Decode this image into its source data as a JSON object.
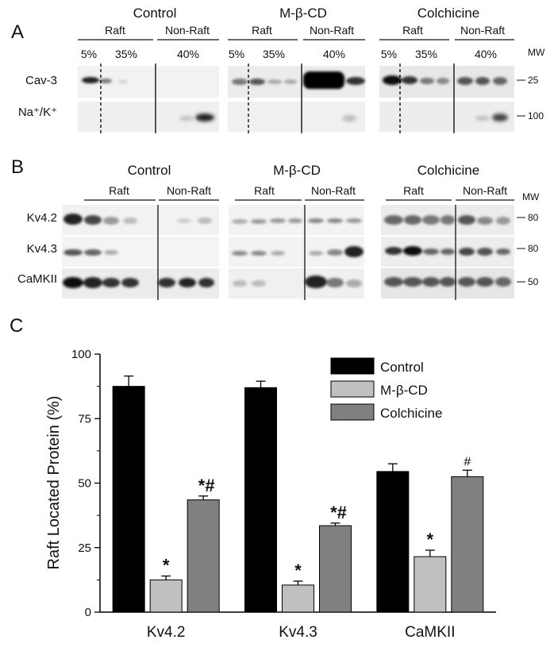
{
  "panel_labels": {
    "a": "A",
    "b": "B",
    "c": "C"
  },
  "panel_a": {
    "groups": [
      {
        "name": "Control",
        "raft": "Raft",
        "nonraft": "Non-Raft",
        "pct": [
          "5%",
          "35%",
          "40%"
        ]
      },
      {
        "name": "M-β-CD",
        "raft": "Raft",
        "nonraft": "Non-Raft",
        "pct": [
          "5%",
          "35%",
          "40%"
        ]
      },
      {
        "name": "Colchicine",
        "raft": "Raft",
        "nonraft": "Non-Raft",
        "pct": [
          "5%",
          "35%",
          "40%"
        ]
      }
    ],
    "rows": [
      {
        "label": "Cav-3",
        "mw": "25"
      },
      {
        "label": "Na⁺/K⁺",
        "mw": "100"
      }
    ],
    "mw_header": "MW"
  },
  "panel_b": {
    "groups": [
      {
        "name": "Control",
        "raft": "Raft",
        "nonraft": "Non-Raft"
      },
      {
        "name": "M-β-CD",
        "raft": "Raft",
        "nonraft": "Non-Raft"
      },
      {
        "name": "Colchicine",
        "raft": "Raft",
        "nonraft": "Non-Raft"
      }
    ],
    "rows": [
      {
        "label": "Kv4.2",
        "mw": "80"
      },
      {
        "label": "Kv4.3",
        "mw": "80"
      },
      {
        "label": "CaMKII",
        "mw": "50"
      }
    ],
    "mw_header": "MW"
  },
  "chart_data": {
    "type": "bar",
    "categories": [
      "Kv4.2",
      "Kv4.3",
      "CaMKII"
    ],
    "series": [
      {
        "name": "Control",
        "color": "#000000",
        "values": [
          87.5,
          87.0,
          54.5
        ],
        "errors": [
          4.0,
          2.5,
          3.0
        ],
        "marks": [
          "",
          "",
          ""
        ]
      },
      {
        "name": "M-β-CD",
        "color": "#c0c0c0",
        "values": [
          12.5,
          10.5,
          21.5
        ],
        "errors": [
          1.5,
          1.5,
          2.5
        ],
        "marks": [
          "*",
          "*",
          "*"
        ]
      },
      {
        "name": "Colchicine",
        "color": "#808080",
        "values": [
          43.5,
          33.5,
          52.5
        ],
        "errors": [
          1.5,
          1.0,
          2.5
        ],
        "marks": [
          "*#",
          "*#",
          "#"
        ]
      }
    ],
    "ylabel": "Raft Located Protein (%)",
    "ylim": [
      0,
      100
    ],
    "yticks": [
      "0",
      "25",
      "50",
      "75",
      "100"
    ],
    "legend": "top-right"
  }
}
